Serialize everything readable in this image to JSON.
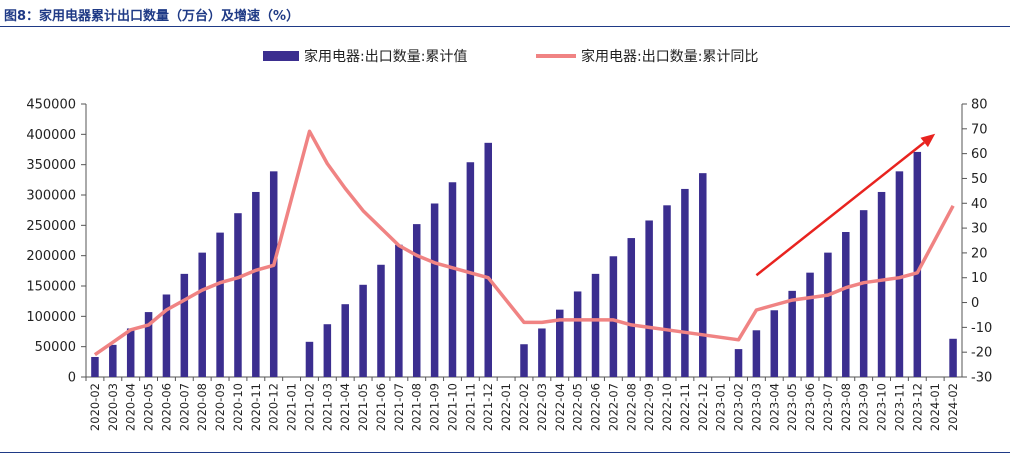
{
  "figure": {
    "title": "图8：家用电器累计出口数量（万台）及增速（%）"
  },
  "colors": {
    "bar": "#3b2e8f",
    "line": "#f08383",
    "arrow": "#e8231f",
    "axis": "#555555",
    "title": "#1f3a86"
  },
  "chart_data": {
    "type": "bar",
    "title": "",
    "legend_position": "top",
    "grid": false,
    "categories": [
      "2020-02",
      "2020-03",
      "2020-04",
      "2020-05",
      "2020-06",
      "2020-07",
      "2020-08",
      "2020-09",
      "2020-10",
      "2020-11",
      "2020-12",
      "2021-01",
      "2021-02",
      "2021-03",
      "2021-04",
      "2021-05",
      "2021-06",
      "2021-07",
      "2021-08",
      "2021-09",
      "2021-10",
      "2021-11",
      "2021-12",
      "2022-01",
      "2022-02",
      "2022-03",
      "2022-04",
      "2022-05",
      "2022-06",
      "2022-07",
      "2022-08",
      "2022-09",
      "2022-10",
      "2022-11",
      "2022-12",
      "2023-01",
      "2023-02",
      "2023-03",
      "2023-04",
      "2023-05",
      "2023-06",
      "2023-07",
      "2023-08",
      "2023-09",
      "2023-10",
      "2023-11",
      "2023-12",
      "2024-01",
      "2024-02"
    ],
    "series": [
      {
        "name": "家用电器:出口数量:累计值",
        "type": "bar",
        "axis": "left",
        "values": [
          33000,
          53000,
          80000,
          107000,
          136000,
          170000,
          205000,
          238000,
          270000,
          305000,
          339000,
          null,
          58000,
          87000,
          120000,
          152000,
          185000,
          218000,
          252000,
          286000,
          321000,
          354000,
          386000,
          null,
          54000,
          80000,
          111000,
          141000,
          170000,
          199000,
          229000,
          258000,
          283000,
          310000,
          336000,
          null,
          46000,
          77000,
          110000,
          142000,
          172000,
          205000,
          239000,
          275000,
          305000,
          339000,
          371000,
          null,
          63000
        ]
      },
      {
        "name": "家用电器:出口数量:累计同比",
        "type": "line",
        "axis": "right",
        "values": [
          -21,
          -16,
          -11,
          -9,
          -3,
          1,
          5,
          8,
          10,
          13,
          15,
          null,
          69,
          56,
          46,
          37,
          30,
          23,
          19,
          16,
          14,
          12,
          10,
          null,
          -8,
          -8,
          -7,
          -7,
          -7,
          -7,
          -9,
          -10,
          -11,
          -12,
          -13,
          null,
          -15,
          -3,
          -1,
          1,
          2,
          3,
          6,
          8,
          9,
          10,
          12,
          null,
          39
        ]
      }
    ],
    "y_left": {
      "min": 0,
      "max": 450000,
      "step": 50000,
      "ticks": [
        "0",
        "50000",
        "100000",
        "150000",
        "200000",
        "250000",
        "300000",
        "350000",
        "400000",
        "450000"
      ]
    },
    "y_right": {
      "min": -30,
      "max": 80,
      "step": 10,
      "ticks": [
        "-30",
        "-20",
        "-10",
        "0",
        "10",
        "20",
        "30",
        "40",
        "50",
        "60",
        "70",
        "80"
      ]
    },
    "annotations": [
      {
        "type": "arrow",
        "from": {
          "category": "2023-03",
          "y_right": 11
        },
        "to": {
          "category": "2024-01",
          "y_right": 68
        }
      }
    ]
  }
}
